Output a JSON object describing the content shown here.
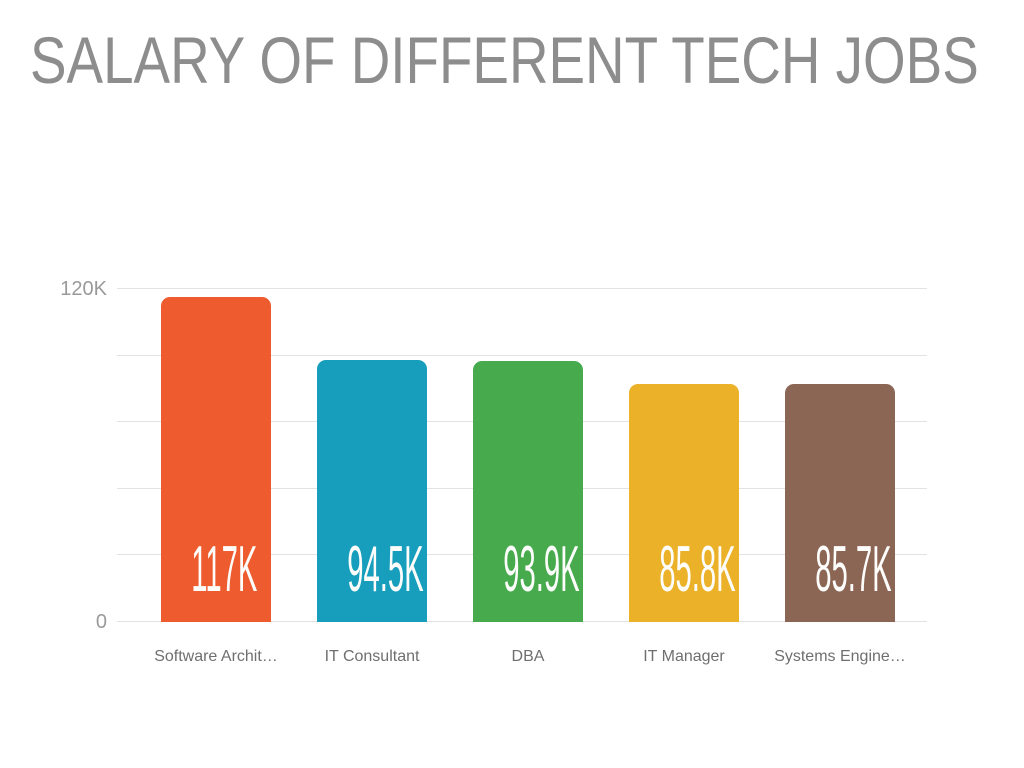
{
  "chart_data": {
    "type": "bar",
    "title": "SALARY OF DIFFERENT TECH JOBS",
    "categories": [
      "Software Archit…",
      "IT Consultant",
      "DBA",
      "IT Manager",
      "Systems Engine…"
    ],
    "values": [
      117000,
      94500,
      93900,
      85800,
      85700
    ],
    "value_labels": [
      "117K",
      "94.5K",
      "93.9K",
      "85.8K",
      "85.7K"
    ],
    "bar_colors": [
      "#ee5b2f",
      "#169ebc",
      "#47ab4d",
      "#ebb128",
      "#8c6655"
    ],
    "xlabel": "",
    "ylabel": "",
    "ylim": [
      0,
      120000
    ],
    "gridline_step": 24000,
    "grid": true,
    "legend": false,
    "yticks": [
      {
        "value": 0,
        "label": "0"
      },
      {
        "value": 120000,
        "label": "120K"
      }
    ]
  },
  "styles": {
    "background": "#ffffff",
    "title_color": "#8d8d8d",
    "axis_label_color": "#9a9a9a",
    "category_label_color": "#6f6f6f",
    "gridline_color": "#e3e3e3",
    "value_label_color": "#fdfdfc"
  }
}
